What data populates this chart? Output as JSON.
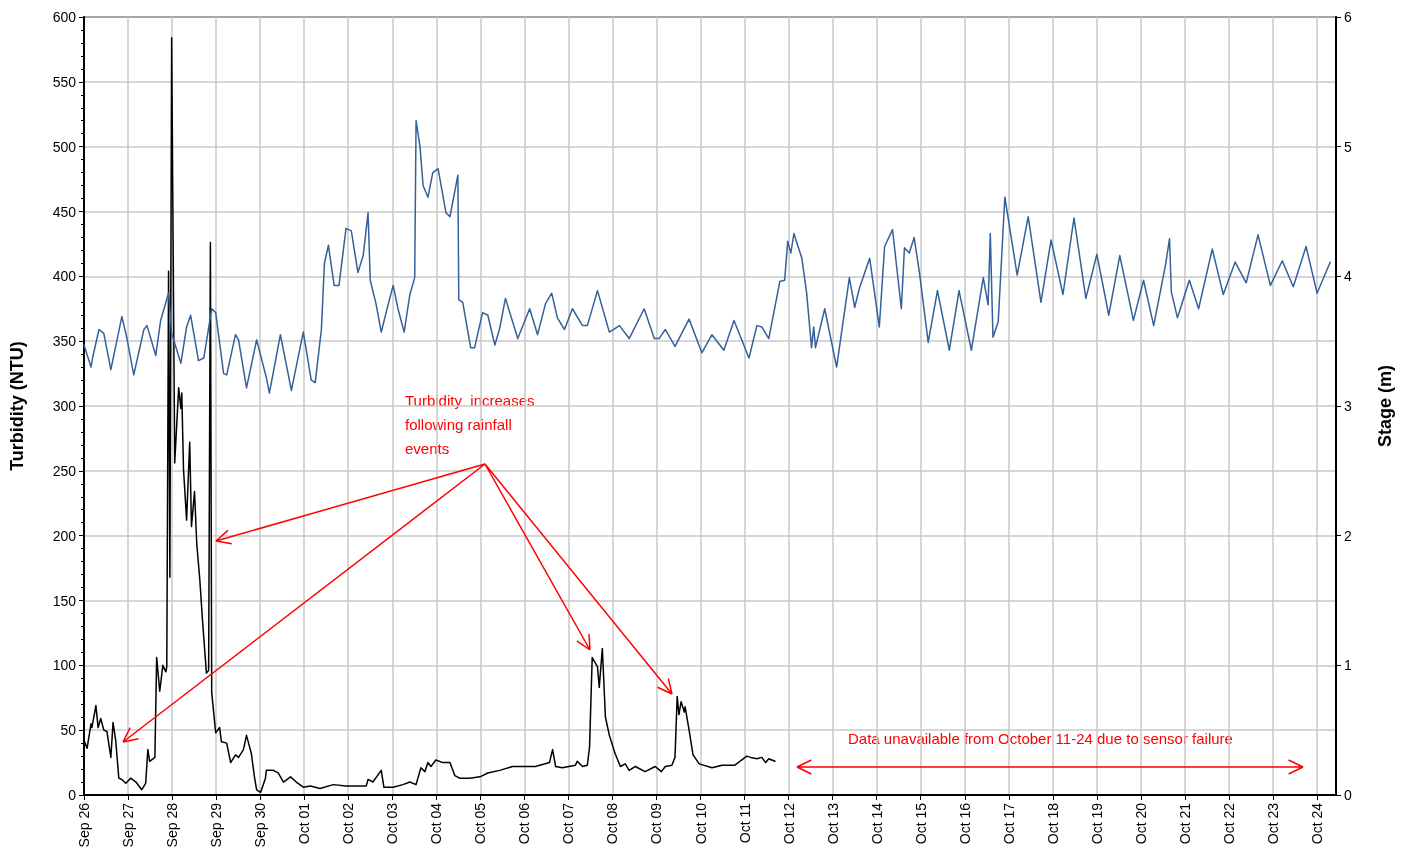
{
  "chart_data": {
    "type": "line",
    "ylabel": "Turbidity (NTU)",
    "y2label": "Stage (m)",
    "annotations": [
      "Turbidity  increases following rainfall events",
      "Data unavailable from October 11-24 due to sensor failure"
    ],
    "xlim": [
      "--09-26",
      "--10-24T10:19"
    ],
    "xticks": [
      {
        "value": "--09-26",
        "label": "Sep 26"
      },
      {
        "value": "--09-27",
        "label": "Sep 27"
      },
      {
        "value": "--09-28",
        "label": "Sep 28"
      },
      {
        "value": "--09-29",
        "label": "Sep 29"
      },
      {
        "value": "--09-30",
        "label": "Sep 30"
      },
      {
        "value": "--10-01",
        "label": "Oct 01"
      },
      {
        "value": "--10-02",
        "label": "Oct 02"
      },
      {
        "value": "--10-03",
        "label": "Oct 03"
      },
      {
        "value": "--10-04",
        "label": "Oct 04"
      },
      {
        "value": "--10-05",
        "label": "Oct 05"
      },
      {
        "value": "--10-06",
        "label": "Oct 06"
      },
      {
        "value": "--10-07",
        "label": "Oct 07"
      },
      {
        "value": "--10-08",
        "label": "Oct 08"
      },
      {
        "value": "--10-09",
        "label": "Oct 09"
      },
      {
        "value": "--10-10",
        "label": "Oct 10"
      },
      {
        "value": "--10-11",
        "label": "Oct 11"
      },
      {
        "value": "--10-12",
        "label": "Oct 12"
      },
      {
        "value": "--10-13",
        "label": "Oct 13"
      },
      {
        "value": "--10-14",
        "label": "Oct 14"
      },
      {
        "value": "--10-15",
        "label": "Oct 15"
      },
      {
        "value": "--10-16",
        "label": "Oct 16"
      },
      {
        "value": "--10-17",
        "label": "Oct 17"
      },
      {
        "value": "--10-18",
        "label": "Oct 18"
      },
      {
        "value": "--10-19",
        "label": "Oct 19"
      },
      {
        "value": "--10-20",
        "label": "Oct 20"
      },
      {
        "value": "--10-21",
        "label": "Oct 21"
      },
      {
        "value": "--10-22",
        "label": "Oct 22"
      },
      {
        "value": "--10-23",
        "label": "Oct 23"
      },
      {
        "value": "--10-24",
        "label": "Oct 24"
      }
    ],
    "ylim": [
      0,
      600
    ],
    "yticks": [
      0,
      50,
      100,
      150,
      200,
      250,
      300,
      350,
      400,
      450,
      500,
      550,
      600
    ],
    "y2lim": [
      0,
      6
    ],
    "y2ticks": [
      0,
      1,
      2,
      3,
      4,
      5,
      6
    ],
    "grid": true,
    "marker": "none",
    "line_style": "solid",
    "series": [
      {
        "color": "#000000",
        "axis": "y",
        "x": [
          "--09-26T00:00",
          "--09-26T01:41",
          "--09-26T03:50",
          "--09-26T04:19",
          "--09-26T06:29",
          "--09-26T07:41",
          "--09-26T09:07",
          "--09-26T10:48",
          "--09-26T12:29",
          "--09-26T14:38",
          "--09-26T15:50",
          "--09-26T17:17",
          "--09-26T18:58",
          "--09-26T20:38",
          "--09-26T22:48",
          "--09-27T01:26",
          "--09-27T04:19",
          "--09-27T07:26",
          "--09-27T09:36",
          "--09-27T10:48",
          "--09-27T11:46",
          "--09-27T14:38",
          "--09-27T15:36",
          "--09-27T17:17",
          "--09-27T18:58",
          "--09-27T20:38",
          "--09-27T21:07",
          "--09-27T22:05",
          "--09-27T22:48",
          "--09-27T23:46",
          "--09-28T01:26",
          "--09-28T03:36",
          "--09-28T04:48",
          "--09-28T05:17",
          "--09-28T06:14",
          "--09-28T07:55",
          "--09-28T09:36",
          "--09-28T10:34",
          "--09-28T12:14",
          "--09-28T13:26",
          "--09-28T15:07",
          "--09-28T16:34",
          "--09-28T18:43",
          "--09-28T19:55",
          "--09-28T20:53",
          "--09-28T21:36",
          "--09-28T23:46",
          "--09-29T01:55",
          "--09-29T02:53",
          "--09-29T05:46",
          "--09-29T07:55",
          "--09-29T10:34",
          "--09-29T12:14",
          "--09-29T14:53",
          "--09-29T16:34",
          "--09-29T19:12",
          "--09-29T20:53",
          "--09-29T22:05",
          "--09-30T00:14",
          "--09-30T02:53",
          "--09-30T03:22",
          "--09-30T07:12",
          "--09-30T09:50",
          "--09-30T12:43",
          "--09-30T16:34",
          "--09-30T19:41",
          "--09-30T23:31",
          "--10-01T03:22",
          "--10-01T08:38",
          "--10-01T15:50",
          "--10-01T22:48",
          "--10-02T09:50",
          "--10-02T10:48",
          "--10-02T13:26",
          "--10-02T18:00",
          "--10-02T19:26",
          "--10-03T00:29",
          "--10-03T05:46",
          "--10-03T09:36",
          "--10-03T12:58",
          "--10-03T15:36",
          "--10-03T17:46",
          "--10-03T19:26",
          "--10-03T21:07",
          "--10-03T23:46",
          "--10-04T03:36",
          "--10-04T07:26",
          "--10-04T10:05",
          "--10-04T12:43",
          "--10-04T18:14",
          "--10-04T23:46",
          "--10-05T04:05",
          "--10-05T10:34",
          "--10-05T17:31",
          "--10-05T23:02",
          "--10-06T06:00",
          "--10-06T13:41",
          "--10-06T15:22",
          "--10-06T17:02",
          "--10-06T20:38",
          "--10-07T03:50",
          "--10-07T04:48",
          "--10-07T07:41",
          "--10-07T10:19",
          "--10-07T11:31",
          "--10-07T12:58",
          "--10-07T15:50",
          "--10-07T16:48",
          "--10-07T18:29",
          "--10-07T20:10",
          "--10-07T22:19",
          "--10-08T01:26",
          "--10-08T04:19",
          "--10-08T06:58",
          "--10-08T09:07",
          "--10-08T12:29",
          "--10-08T17:46",
          "--10-08T23:17",
          "--10-09T02:38",
          "--10-09T04:48",
          "--10-09T08:24",
          "--10-09T10:05",
          "--10-09T11:17",
          "--10-09T12:14",
          "--10-09T13:26",
          "--10-09T15:07",
          "--10-09T15:36",
          "--10-09T17:46",
          "--10-09T19:55",
          "--10-09T23:17",
          "--10-10T06:14",
          "--10-10T11:46",
          "--10-10T18:43",
          "--10-11T01:12",
          "--10-11T03:22",
          "--10-11T06:43",
          "--10-11T09:22",
          "--10-11T11:31",
          "--10-11T13:12",
          "--10-11T16:34"
        ],
        "values": [
          42,
          36,
          55,
          52,
          69,
          52,
          59,
          50,
          49,
          29,
          56,
          42,
          13,
          12,
          9,
          13,
          10,
          4,
          9,
          35,
          26,
          29,
          106,
          80,
          100,
          95,
          99,
          404,
          168,
          584,
          256,
          314,
          298,
          310,
          251,
          212,
          272,
          207,
          234,
          194,
          166,
          135,
          94,
          96,
          426,
          79,
          48,
          52,
          41,
          40,
          25,
          31,
          29,
          35,
          46,
          32,
          14,
          4,
          2,
          13,
          19,
          19,
          17,
          10,
          14,
          10,
          6,
          7,
          5,
          8,
          7,
          7,
          12,
          10,
          19,
          6,
          6,
          8,
          10,
          8,
          21,
          18,
          25,
          22,
          27,
          25,
          25,
          15,
          13,
          13,
          14,
          17,
          19,
          22,
          22,
          22,
          25,
          35,
          22,
          21,
          23,
          26,
          22,
          23,
          37,
          106,
          99,
          83,
          113,
          60,
          46,
          32,
          22,
          24,
          19,
          22,
          18,
          22,
          18,
          22,
          23,
          29,
          76,
          62,
          72,
          64,
          68,
          50,
          31,
          24,
          21,
          23,
          23,
          30,
          29,
          28,
          29,
          25,
          28,
          26
        ]
      },
      {
        "color": "#34619a",
        "axis": "y2",
        "x": [
          "--09-26T00:00",
          "--09-26T03:50",
          "--09-26T04:48",
          "--09-26T08:10",
          "--09-26T10:48",
          "--09-26T14:38",
          "--09-26T20:38",
          "--09-26T23:17",
          "--09-27T03:07",
          "--09-27T08:38",
          "--09-27T10:19",
          "--09-27T15:07",
          "--09-27T17:46",
          "--09-27T22:05",
          "--09-27T23:46",
          "--09-28T04:48",
          "--09-28T07:55",
          "--09-28T10:05",
          "--09-28T14:24",
          "--09-28T17:17",
          "--09-28T21:36",
          "--09-28T23:46",
          "--09-29T04:05",
          "--09-29T05:46",
          "--09-29T10:34",
          "--09-29T12:14",
          "--09-29T16:34",
          "--09-29T22:05",
          "--09-30T03:22",
          "--09-30T05:02",
          "--09-30T11:02",
          "--09-30T17:02",
          "--09-30T23:31",
          "--10-01T03:50",
          "--10-01T06:00",
          "--10-01T09:22",
          "--10-01T11:02",
          "--10-01T13:12",
          "--10-01T16:19",
          "--10-01T18:58",
          "--10-01T22:48",
          "--10-02T01:41",
          "--10-02T05:17",
          "--10-02T08:10",
          "--10-02T10:48",
          "--10-02T12:00",
          "--10-02T15:07",
          "--10-02T18:00",
          "--10-02T20:38",
          "--10-03T00:29",
          "--10-03T03:07",
          "--10-03T06:29",
          "--10-03T09:36",
          "--10-03T12:14",
          "--10-03T12:58",
          "--10-03T15:07",
          "--10-03T16:48",
          "--10-03T19:26",
          "--10-03T22:05",
          "--10-04T00:58",
          "--10-04T05:17",
          "--10-04T07:26",
          "--10-04T11:46",
          "--10-04T12:14",
          "--10-04T14:24",
          "--10-04T18:43",
          "--10-04T20:53",
          "--10-05T01:12",
          "--10-05T04:05",
          "--10-05T07:55",
          "--10-05T10:34",
          "--10-05T13:41",
          "--10-05T20:24",
          "--10-06T02:53",
          "--10-06T07:12",
          "--10-06T11:31",
          "--10-06T14:53",
          "--10-06T18:00",
          "--10-06T21:50",
          "--10-07T02:10",
          "--10-07T07:41",
          "--10-07T10:19",
          "--10-07T15:50",
          "--10-07T22:19",
          "--10-08T03:50",
          "--10-08T09:07",
          "--10-08T17:17",
          "--10-08T22:48",
          "--10-09T01:26",
          "--10-09T04:48",
          "--10-09T10:05",
          "--10-09T17:46",
          "--10-10T00:43",
          "--10-10T06:14",
          "--10-10T12:43",
          "--10-10T18:14",
          "--10-11T02:24",
          "--10-11T06:43",
          "--10-11T09:22",
          "--10-11T13:12",
          "--10-11T19:12",
          "--10-11T21:50",
          "--10-11T23:31",
          "--10-12T01:12",
          "--10-12T02:53",
          "--10-12T07:12",
          "--10-12T09:50",
          "--10-12T12:29",
          "--10-12T13:41",
          "--10-12T14:38",
          "--10-12T19:41",
          "--10-13T02:10",
          "--10-13T09:07",
          "--10-13T12:00",
          "--10-13T14:38",
          "--10-13T20:10",
          "--10-14T01:26",
          "--10-14T04:19",
          "--10-14T08:38",
          "--10-14T13:26",
          "--10-14T15:07",
          "--10-14T17:46",
          "--10-14T20:24",
          "--10-14T23:17",
          "--10-15T04:05",
          "--10-15T09:07",
          "--10-15T15:36",
          "--10-15T20:53",
          "--10-16T03:36",
          "--10-16T10:05",
          "--10-16T12:43",
          "--10-16T13:55",
          "--10-16T15:22",
          "--10-16T18:14",
          "--10-16T21:50",
          "--10-17T04:34",
          "--10-17T10:34",
          "--10-17T17:31",
          "--10-17T23:02",
          "--10-18T05:31",
          "--10-18T11:31",
          "--10-18T18:00",
          "--10-19T00:00",
          "--10-19T06:29",
          "--10-19T12:29",
          "--10-19T19:55",
          "--10-20T01:26",
          "--10-20T06:58",
          "--10-20T13:26",
          "--10-20T15:36",
          "--10-20T16:34",
          "--10-20T19:55",
          "--10-21T02:24",
          "--10-21T07:26",
          "--10-21T14:53",
          "--10-21T20:53",
          "--10-22T03:22",
          "--10-22T09:22",
          "--10-22T15:50",
          "--10-22T22:34",
          "--10-23T05:02",
          "--10-23T11:02",
          "--10-23T18:00",
          "--10-24T00:00",
          "--10-24T07:12"
        ],
        "values": [
          3.47,
          3.3,
          3.38,
          3.59,
          3.56,
          3.28,
          3.69,
          3.53,
          3.24,
          3.59,
          3.62,
          3.39,
          3.66,
          3.87,
          3.56,
          3.33,
          3.61,
          3.7,
          3.35,
          3.37,
          3.75,
          3.72,
          3.25,
          3.24,
          3.55,
          3.51,
          3.14,
          3.51,
          3.22,
          3.1,
          3.55,
          3.12,
          3.57,
          3.2,
          3.18,
          3.59,
          4.1,
          4.24,
          3.93,
          3.93,
          4.37,
          4.35,
          4.03,
          4.16,
          4.49,
          3.97,
          3.79,
          3.57,
          3.72,
          3.93,
          3.75,
          3.57,
          3.86,
          3.99,
          5.2,
          5,
          4.7,
          4.61,
          4.8,
          4.83,
          4.49,
          4.46,
          4.78,
          3.82,
          3.8,
          3.45,
          3.45,
          3.72,
          3.7,
          3.47,
          3.6,
          3.83,
          3.52,
          3.75,
          3.55,
          3.79,
          3.87,
          3.68,
          3.59,
          3.75,
          3.62,
          3.62,
          3.89,
          3.57,
          3.62,
          3.52,
          3.75,
          3.52,
          3.52,
          3.59,
          3.46,
          3.67,
          3.41,
          3.55,
          3.43,
          3.66,
          3.37,
          3.62,
          3.61,
          3.52,
          3.96,
          3.97,
          4.27,
          4.18,
          4.33,
          4.14,
          3.87,
          3.45,
          3.61,
          3.45,
          3.75,
          3.3,
          3.99,
          3.76,
          3.91,
          4.14,
          3.61,
          4.23,
          4.36,
          3.75,
          4.22,
          4.18,
          4.3,
          4.03,
          3.49,
          3.89,
          3.43,
          3.89,
          3.43,
          3.99,
          3.78,
          4.33,
          3.53,
          3.65,
          4.61,
          4.01,
          4.46,
          3.8,
          4.28,
          3.86,
          4.45,
          3.83,
          4.17,
          3.7,
          4.16,
          3.66,
          3.97,
          3.62,
          4.09,
          4.29,
          3.88,
          3.68,
          3.97,
          3.75,
          4.21,
          3.86,
          4.11,
          3.95,
          4.32,
          3.93,
          4.12,
          3.92,
          4.23,
          3.87,
          4.11
        ]
      }
    ]
  }
}
